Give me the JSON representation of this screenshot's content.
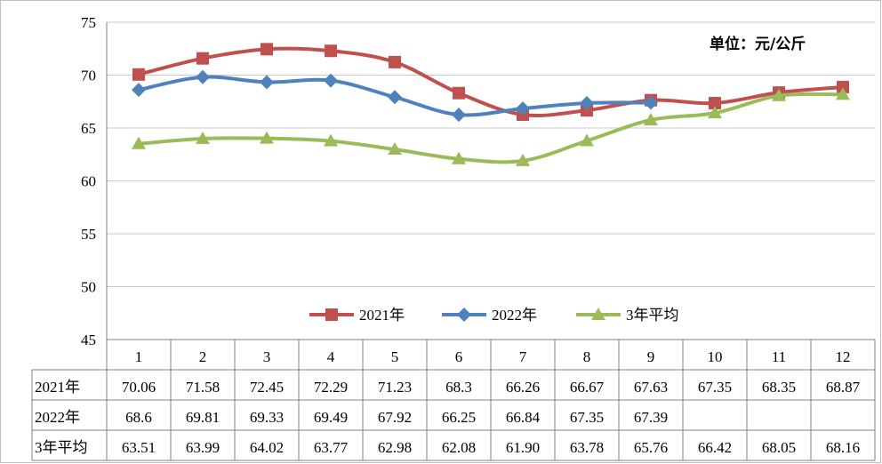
{
  "chart_data": {
    "type": "line",
    "title": "",
    "unit_label": "单位：元/公斤",
    "categories": [
      "1",
      "2",
      "3",
      "4",
      "5",
      "6",
      "7",
      "8",
      "9",
      "10",
      "11",
      "12"
    ],
    "ylim": [
      45,
      75
    ],
    "yticks": [
      45,
      50,
      55,
      60,
      65,
      70,
      75
    ],
    "grid": true,
    "legend_position": "bottom-center",
    "series": [
      {
        "name": "2021年",
        "color": "#c0504d",
        "marker": "square",
        "values": [
          70.06,
          71.58,
          72.45,
          72.29,
          71.23,
          68.3,
          66.26,
          66.67,
          67.63,
          67.35,
          68.35,
          68.87
        ],
        "labels": [
          "70.06",
          "71.58",
          "72.45",
          "72.29",
          "71.23",
          "68.3",
          "66.26",
          "66.67",
          "67.63",
          "67.35",
          "68.35",
          "68.87"
        ]
      },
      {
        "name": "2022年",
        "color": "#4f81bd",
        "marker": "diamond",
        "values": [
          68.6,
          69.81,
          69.33,
          69.49,
          67.92,
          66.25,
          66.84,
          67.35,
          67.39,
          null,
          null,
          null
        ],
        "labels": [
          "68.6",
          "69.81",
          "69.33",
          "69.49",
          "67.92",
          "66.25",
          "66.84",
          "67.35",
          "67.39",
          "",
          "",
          ""
        ]
      },
      {
        "name": "3年平均",
        "color": "#9bbb59",
        "marker": "triangle",
        "values": [
          63.51,
          63.99,
          64.02,
          63.77,
          62.98,
          62.08,
          61.9,
          63.78,
          65.76,
          66.42,
          68.05,
          68.16
        ],
        "labels": [
          "63.51",
          "63.99",
          "64.02",
          "63.77",
          "62.98",
          "62.08",
          "61.90",
          "63.78",
          "65.76",
          "66.42",
          "68.05",
          "68.16"
        ]
      }
    ]
  }
}
